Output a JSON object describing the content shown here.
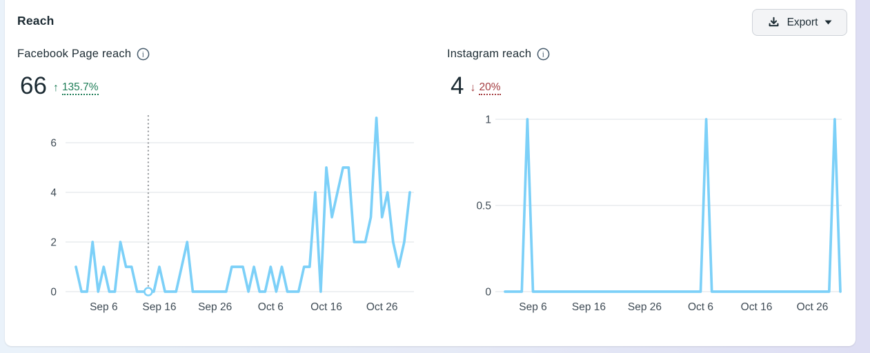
{
  "page": {
    "title": "Reach"
  },
  "export_button": {
    "label": "Export",
    "icons": [
      "download-icon",
      "caret-down-icon"
    ]
  },
  "colors": {
    "line_blue": "#7CD0F8",
    "positive_green": "#1E7D57",
    "negative_red": "#A33B3F",
    "grid": "#E4E6EA",
    "text": "#1C2B33",
    "axis_text": "#3E4A54",
    "annotation_gray": "#8A8D91",
    "card_bg": "#FFFFFF",
    "button_bg": "#F3F4F6",
    "button_border": "#CED2D8"
  },
  "panels": [
    {
      "id": "facebook",
      "title": "Facebook Page reach",
      "info_icon": "info-icon",
      "value": "66",
      "trend": {
        "direction": "up",
        "arrow": "↑",
        "percent": "135.7%"
      }
    },
    {
      "id": "instagram",
      "title": "Instagram reach",
      "info_icon": "info-icon",
      "value": "4",
      "trend": {
        "direction": "down",
        "arrow": "↓",
        "percent": "20%"
      }
    }
  ],
  "chart_data": [
    {
      "type": "line",
      "title": "Facebook Page reach",
      "line_color": "#7CD0F8",
      "ylim": [
        0,
        7
      ],
      "y_ticks": [
        0,
        2,
        4,
        6
      ],
      "y_tick_labels": [
        "0",
        "2",
        "4",
        "6"
      ],
      "x_ticks": [
        "Sep 6",
        "Sep 16",
        "Sep 26",
        "Oct 6",
        "Oct 16",
        "Oct 26"
      ],
      "grid": true,
      "annotation": {
        "category": "Sep 14",
        "value": 0,
        "style": "dotted-vline-with-circle-marker"
      },
      "categories": [
        "Sep 1",
        "Sep 2",
        "Sep 3",
        "Sep 4",
        "Sep 5",
        "Sep 6",
        "Sep 7",
        "Sep 8",
        "Sep 9",
        "Sep 10",
        "Sep 11",
        "Sep 12",
        "Sep 13",
        "Sep 14",
        "Sep 15",
        "Sep 16",
        "Sep 17",
        "Sep 18",
        "Sep 19",
        "Sep 20",
        "Sep 21",
        "Sep 22",
        "Sep 23",
        "Sep 24",
        "Sep 25",
        "Sep 26",
        "Sep 27",
        "Sep 28",
        "Sep 29",
        "Sep 30",
        "Oct 1",
        "Oct 2",
        "Oct 3",
        "Oct 4",
        "Oct 5",
        "Oct 6",
        "Oct 7",
        "Oct 8",
        "Oct 9",
        "Oct 10",
        "Oct 11",
        "Oct 12",
        "Oct 13",
        "Oct 14",
        "Oct 15",
        "Oct 16",
        "Oct 17",
        "Oct 18",
        "Oct 19",
        "Oct 20",
        "Oct 21",
        "Oct 22",
        "Oct 23",
        "Oct 24",
        "Oct 25",
        "Oct 26",
        "Oct 27",
        "Oct 28",
        "Oct 29",
        "Oct 30",
        "Oct 31"
      ],
      "values": [
        1,
        0,
        0,
        2,
        0,
        1,
        0,
        0,
        2,
        1,
        1,
        0,
        0,
        0,
        0,
        1,
        0,
        0,
        0,
        1,
        2,
        0,
        0,
        0,
        0,
        0,
        0,
        0,
        1,
        1,
        1,
        0,
        1,
        0,
        0,
        1,
        0,
        1,
        0,
        0,
        0,
        1,
        1,
        4,
        0,
        5,
        3,
        4,
        5,
        5,
        2,
        2,
        2,
        3,
        7,
        3,
        4,
        2,
        1,
        2,
        4
      ]
    },
    {
      "type": "line",
      "title": "Instagram reach",
      "line_color": "#7CD0F8",
      "ylim": [
        0,
        1
      ],
      "y_ticks": [
        0,
        0.5,
        1
      ],
      "y_tick_labels": [
        "0",
        "0.5",
        "1"
      ],
      "x_ticks": [
        "Sep 6",
        "Sep 16",
        "Sep 26",
        "Oct 6",
        "Oct 16",
        "Oct 26"
      ],
      "grid": true,
      "categories": [
        "Sep 1",
        "Sep 2",
        "Sep 3",
        "Sep 4",
        "Sep 5",
        "Sep 6",
        "Sep 7",
        "Sep 8",
        "Sep 9",
        "Sep 10",
        "Sep 11",
        "Sep 12",
        "Sep 13",
        "Sep 14",
        "Sep 15",
        "Sep 16",
        "Sep 17",
        "Sep 18",
        "Sep 19",
        "Sep 20",
        "Sep 21",
        "Sep 22",
        "Sep 23",
        "Sep 24",
        "Sep 25",
        "Sep 26",
        "Sep 27",
        "Sep 28",
        "Sep 29",
        "Sep 30",
        "Oct 1",
        "Oct 2",
        "Oct 3",
        "Oct 4",
        "Oct 5",
        "Oct 6",
        "Oct 7",
        "Oct 8",
        "Oct 9",
        "Oct 10",
        "Oct 11",
        "Oct 12",
        "Oct 13",
        "Oct 14",
        "Oct 15",
        "Oct 16",
        "Oct 17",
        "Oct 18",
        "Oct 19",
        "Oct 20",
        "Oct 21",
        "Oct 22",
        "Oct 23",
        "Oct 24",
        "Oct 25",
        "Oct 26",
        "Oct 27",
        "Oct 28",
        "Oct 29",
        "Oct 30",
        "Oct 31"
      ],
      "values": [
        0,
        0,
        0,
        0,
        1,
        0,
        0,
        0,
        0,
        0,
        0,
        0,
        0,
        0,
        0,
        0,
        0,
        0,
        0,
        0,
        0,
        0,
        0,
        0,
        0,
        0,
        0,
        0,
        0,
        0,
        0,
        0,
        0,
        0,
        0,
        0,
        1,
        0,
        0,
        0,
        0,
        0,
        0,
        0,
        0,
        0,
        0,
        0,
        0,
        0,
        0,
        0,
        0,
        0,
        0,
        0,
        0,
        0,
        0,
        1,
        0
      ]
    }
  ]
}
